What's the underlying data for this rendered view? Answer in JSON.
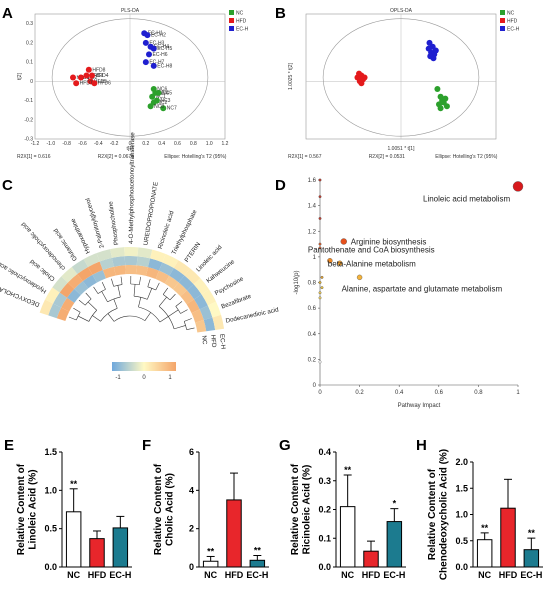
{
  "chart_data": [
    {
      "panel": "A",
      "type": "scatter",
      "title": "PLS-DA",
      "xlabel": "t[1]",
      "ylabel": "t[2]",
      "footer_left": "R2X[1] = 0.616",
      "footer_mid": "R2X[2] = 0.0676",
      "footer_right": "Ellipse: Hotelling's T2 (95%)",
      "xlim": [
        -1.2,
        1.2
      ],
      "ylim": [
        -0.3,
        0.35
      ],
      "xticks": [
        "-1.2",
        "-1.0",
        "-0.8",
        "-0.6",
        "-0.4",
        "-0.2",
        "0",
        "0.2",
        "0.4",
        "0.6",
        "0.8",
        "1.0",
        "1.2"
      ],
      "yticks": [
        "0.3",
        "0.2",
        "0.1",
        "0",
        "-0.1",
        "-0.2",
        "-0.3"
      ],
      "legend": [
        "NC",
        "HFD",
        "EC-H"
      ],
      "series": [
        {
          "name": "NC",
          "color": "#2ca02c",
          "points": [
            [
              0.28,
              -0.08
            ],
            [
              0.3,
              -0.11
            ],
            [
              0.34,
              -0.1
            ],
            [
              0.32,
              -0.06
            ],
            [
              0.36,
              -0.06
            ],
            [
              0.3,
              -0.04
            ],
            [
              0.42,
              -0.14
            ],
            [
              0.26,
              -0.13
            ]
          ],
          "labels": [
            "NC1",
            "NC2",
            "NC3",
            "NC4",
            "NC5",
            "NC6",
            "NC7",
            "NC8"
          ]
        },
        {
          "name": "HFD",
          "color": "#e41a1c",
          "points": [
            [
              -0.72,
              0.02
            ],
            [
              -0.62,
              0.02
            ],
            [
              -0.55,
              0.03
            ],
            [
              -0.48,
              0.03
            ],
            [
              -0.5,
              0.0
            ],
            [
              -0.45,
              -0.01
            ],
            [
              -0.68,
              -0.01
            ],
            [
              -0.52,
              0.06
            ]
          ],
          "labels": [
            "HFD1",
            "HFD2",
            "HFD3",
            "HFD4",
            "HFD5",
            "HFD6",
            "HFD7",
            "HFD8"
          ]
        },
        {
          "name": "EC-H",
          "color": "#1f1fd0",
          "points": [
            [
              0.18,
              0.25
            ],
            [
              0.22,
              0.24
            ],
            [
              0.2,
              0.2
            ],
            [
              0.26,
              0.18
            ],
            [
              0.3,
              0.17
            ],
            [
              0.24,
              0.14
            ],
            [
              0.2,
              0.1
            ],
            [
              0.3,
              0.08
            ]
          ],
          "labels": [
            "EC-H1",
            "EC-H2",
            "EC-H3",
            "EC-H4",
            "EC-H5",
            "EC-H6",
            "EC-H7",
            "EC-H8"
          ]
        }
      ]
    },
    {
      "panel": "B",
      "type": "scatter",
      "title": "OPLS-DA",
      "xlabel": "1.0051 * t[1]",
      "ylabel": "1.0025 * t[2]",
      "footer_left": "R2X[1] = 0.567",
      "footer_mid": "R2X[2] = 0.0531",
      "footer_right": "Ellipse: Hotelling's T2 (95%)",
      "xlim": [
        -1.2,
        1.2
      ],
      "ylim": [
        -0.3,
        0.35
      ],
      "legend": [
        "NC",
        "HFD",
        "EC-H"
      ],
      "series": [
        {
          "name": "NC",
          "color": "#2ca02c",
          "points": [
            [
              0.46,
              -0.04
            ],
            [
              0.5,
              -0.08
            ],
            [
              0.52,
              -0.1
            ],
            [
              0.56,
              -0.09
            ],
            [
              0.5,
              -0.14
            ],
            [
              0.48,
              -0.12
            ],
            [
              0.54,
              -0.11
            ],
            [
              0.58,
              -0.13
            ]
          ]
        },
        {
          "name": "HFD",
          "color": "#e41a1c",
          "points": [
            [
              -0.55,
              0.02
            ],
            [
              -0.5,
              0.03
            ],
            [
              -0.52,
              0.0
            ],
            [
              -0.48,
              0.01
            ],
            [
              -0.53,
              0.04
            ],
            [
              -0.5,
              -0.01
            ],
            [
              -0.46,
              0.02
            ],
            [
              -0.51,
              0.01
            ]
          ]
        },
        {
          "name": "EC-H",
          "color": "#1f1fd0",
          "points": [
            [
              0.36,
              0.2
            ],
            [
              0.4,
              0.18
            ],
            [
              0.38,
              0.15
            ],
            [
              0.42,
              0.14
            ],
            [
              0.37,
              0.13
            ],
            [
              0.41,
              0.12
            ],
            [
              0.35,
              0.17
            ],
            [
              0.44,
              0.16
            ]
          ]
        }
      ]
    },
    {
      "panel": "C",
      "type": "heatmap",
      "metabolites": [
        "DEOXYCHOLATE",
        "Hyodeoxycholic acid",
        "Cholic acid",
        "chenodeoxycholic acid",
        "Glutamic acid",
        "Hypoxanthine",
        "2-Palmitoylglycerol",
        "Phosphocholine",
        "4-O-Methylphosphoacetonoyltransferase",
        "UREIDOPROPIONATE",
        "Ricinoleic acid",
        "Triethylphosphate",
        "PTERIN",
        "Linoleic acid",
        "Kahweucine",
        "Psychosine",
        "Bezafibrate",
        "Dodecanedioic acid"
      ],
      "rings": [
        "NC",
        "HFD",
        "EC-H"
      ],
      "values": [
        [
          0.9,
          -0.6,
          0.2
        ],
        [
          0.9,
          -0.6,
          0.1
        ],
        [
          -0.8,
          1,
          -0.3
        ],
        [
          -0.7,
          0.9,
          -0.2
        ],
        [
          -0.8,
          1,
          -0.4
        ],
        [
          -0.7,
          1,
          -0.3
        ],
        [
          0.8,
          -0.5,
          -0.3
        ],
        [
          0.8,
          -0.6,
          -0.2
        ],
        [
          0.7,
          -0.6,
          -0.1
        ],
        [
          0.7,
          -0.5,
          -0.2
        ],
        [
          0.8,
          -0.8,
          0.1
        ],
        [
          0.7,
          -0.7,
          0.1
        ],
        [
          0.6,
          -0.8,
          0.2
        ],
        [
          0.6,
          -0.8,
          0.2
        ],
        [
          0.7,
          -0.8,
          0.1
        ],
        [
          0.8,
          -0.8,
          0.1
        ],
        [
          0.7,
          -0.7,
          0.0
        ],
        [
          0.6,
          -0.8,
          0.2
        ]
      ],
      "colorbar_ticks": [
        "-1",
        "0",
        "1"
      ],
      "colorbar_colors": [
        "#6fa8dc",
        "#fff9c4",
        "#f4a56a"
      ]
    },
    {
      "panel": "D",
      "type": "scatter",
      "xlabel": "Pathway Impact",
      "ylabel": "-log10(p)",
      "xlim": [
        0,
        1.0
      ],
      "ylim": [
        0,
        1.6
      ],
      "xticks": [
        "0",
        "0.2",
        "0.4",
        "0.6",
        "0.8",
        "1"
      ],
      "yticks": [
        "0",
        "0.2",
        "0.4",
        "0.6",
        "0.8",
        "1",
        "1.2",
        "1.4",
        "1.6"
      ],
      "points": [
        {
          "x": 1.0,
          "y": 1.55,
          "size": 10,
          "color": "#d7191c",
          "label": "Linoleic acid metabolism"
        },
        {
          "x": 0.12,
          "y": 1.12,
          "size": 6,
          "color": "#e6501c",
          "label": "Arginine biosynthesis"
        },
        {
          "x": 0.05,
          "y": 0.97,
          "size": 5,
          "color": "#f08a24",
          "label": "Pantothenate and CoA biosynthesis"
        },
        {
          "x": 0.1,
          "y": 0.95,
          "size": 5,
          "color": "#f0a030",
          "label": "beta-Alanine metabolism"
        },
        {
          "x": 0.2,
          "y": 0.84,
          "size": 5,
          "color": "#f5b33a",
          "label": "Alanine, aspartate and glutamate metabolism"
        },
        {
          "x": 0.0,
          "y": 1.6,
          "size": 2.5,
          "color": "#c0392b",
          "label": ""
        },
        {
          "x": 0.0,
          "y": 1.47,
          "size": 2.5,
          "color": "#c0392b",
          "label": ""
        },
        {
          "x": 0.0,
          "y": 1.3,
          "size": 2.5,
          "color": "#c0392b",
          "label": ""
        },
        {
          "x": 0.0,
          "y": 1.1,
          "size": 2.5,
          "color": "#d55a2a",
          "label": ""
        },
        {
          "x": 0.0,
          "y": 1.07,
          "size": 2.5,
          "color": "#d55a2a",
          "label": ""
        },
        {
          "x": 0.01,
          "y": 0.84,
          "size": 2.5,
          "color": "#e0a030",
          "label": ""
        },
        {
          "x": 0.0,
          "y": 0.8,
          "size": 2.5,
          "color": "#e0b030",
          "label": ""
        },
        {
          "x": 0.01,
          "y": 0.76,
          "size": 2.5,
          "color": "#e8c040",
          "label": ""
        },
        {
          "x": 0.0,
          "y": 0.72,
          "size": 2.5,
          "color": "#ecc850",
          "label": ""
        },
        {
          "x": 0.0,
          "y": 0.68,
          "size": 2.5,
          "color": "#f0d060",
          "label": ""
        },
        {
          "x": 0.0,
          "y": 0.18,
          "size": 2.5,
          "color": "#ffffff",
          "label": ""
        }
      ]
    },
    {
      "panel": "E",
      "type": "bar",
      "ylabel": "Relative Content of Linoleic Acid (%)",
      "categories": [
        "NC",
        "HFD",
        "EC-H"
      ],
      "values": [
        0.72,
        0.37,
        0.51
      ],
      "errors": [
        0.3,
        0.1,
        0.15
      ],
      "sig": [
        "**",
        "",
        ""
      ],
      "ylim": [
        0,
        1.5
      ],
      "yticks": [
        "0.0",
        "0.5",
        "1.0",
        "1.5"
      ],
      "colors": [
        "#ffffff",
        "#e8262b",
        "#1c7b8f"
      ]
    },
    {
      "panel": "F",
      "type": "bar",
      "ylabel": "Relative Content of Cholic Acid (%)",
      "categories": [
        "NC",
        "HFD",
        "EC-H"
      ],
      "values": [
        0.3,
        3.5,
        0.35
      ],
      "errors": [
        0.25,
        1.4,
        0.25
      ],
      "sig": [
        "**",
        "",
        "**"
      ],
      "ylim": [
        0,
        6
      ],
      "yticks": [
        "0",
        "2",
        "4",
        "6"
      ],
      "colors": [
        "#ffffff",
        "#e8262b",
        "#1c7b8f"
      ]
    },
    {
      "panel": "G",
      "type": "bar",
      "ylabel": "Relative Content of Ricinoleic Acid (%)",
      "categories": [
        "NC",
        "HFD",
        "EC-H"
      ],
      "values": [
        0.21,
        0.055,
        0.158
      ],
      "errors": [
        0.11,
        0.035,
        0.045
      ],
      "sig": [
        "**",
        "",
        "*"
      ],
      "ylim": [
        0,
        0.4
      ],
      "yticks": [
        "0.0",
        "0.1",
        "0.2",
        "0.3",
        "0.4"
      ],
      "colors": [
        "#ffffff",
        "#e8262b",
        "#1c7b8f"
      ]
    },
    {
      "panel": "H",
      "type": "bar",
      "ylabel": "Relative Content of Chenodeoxycholic Acid (%)",
      "categories": [
        "NC",
        "HFD",
        "EC-H"
      ],
      "values": [
        0.52,
        1.12,
        0.33
      ],
      "errors": [
        0.13,
        0.55,
        0.22
      ],
      "sig": [
        "**",
        "",
        "**"
      ],
      "ylim": [
        0,
        2.0
      ],
      "yticks": [
        "0.0",
        "0.5",
        "1.0",
        "1.5",
        "2.0"
      ],
      "colors": [
        "#ffffff",
        "#e8262b",
        "#1c7b8f"
      ]
    }
  ]
}
